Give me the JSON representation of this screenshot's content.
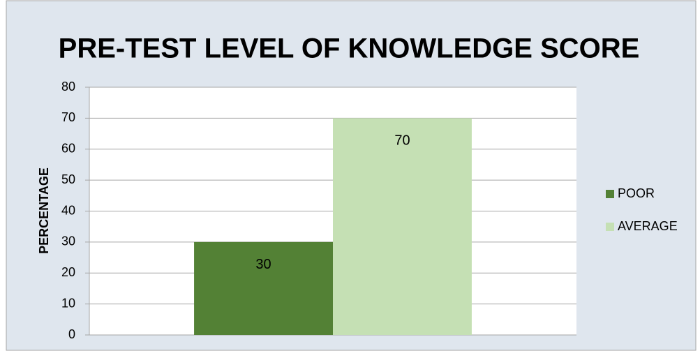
{
  "chart_data": {
    "type": "bar",
    "title": "PRE-TEST LEVEL OF KNOWLEDGE SCORE",
    "y_label": "PERCENTAGE",
    "categories": [
      null
    ],
    "series": [
      {
        "name": "POOR",
        "color": "#538135",
        "values": [
          30
        ]
      },
      {
        "name": "AVERAGE",
        "color": "#c5e0b4",
        "values": [
          70
        ]
      }
    ],
    "ylim": [
      0,
      80
    ],
    "yticks": [
      0,
      10,
      20,
      30,
      40,
      50,
      60,
      70,
      80
    ],
    "grid": true,
    "legend": "right",
    "data_labels": true
  }
}
